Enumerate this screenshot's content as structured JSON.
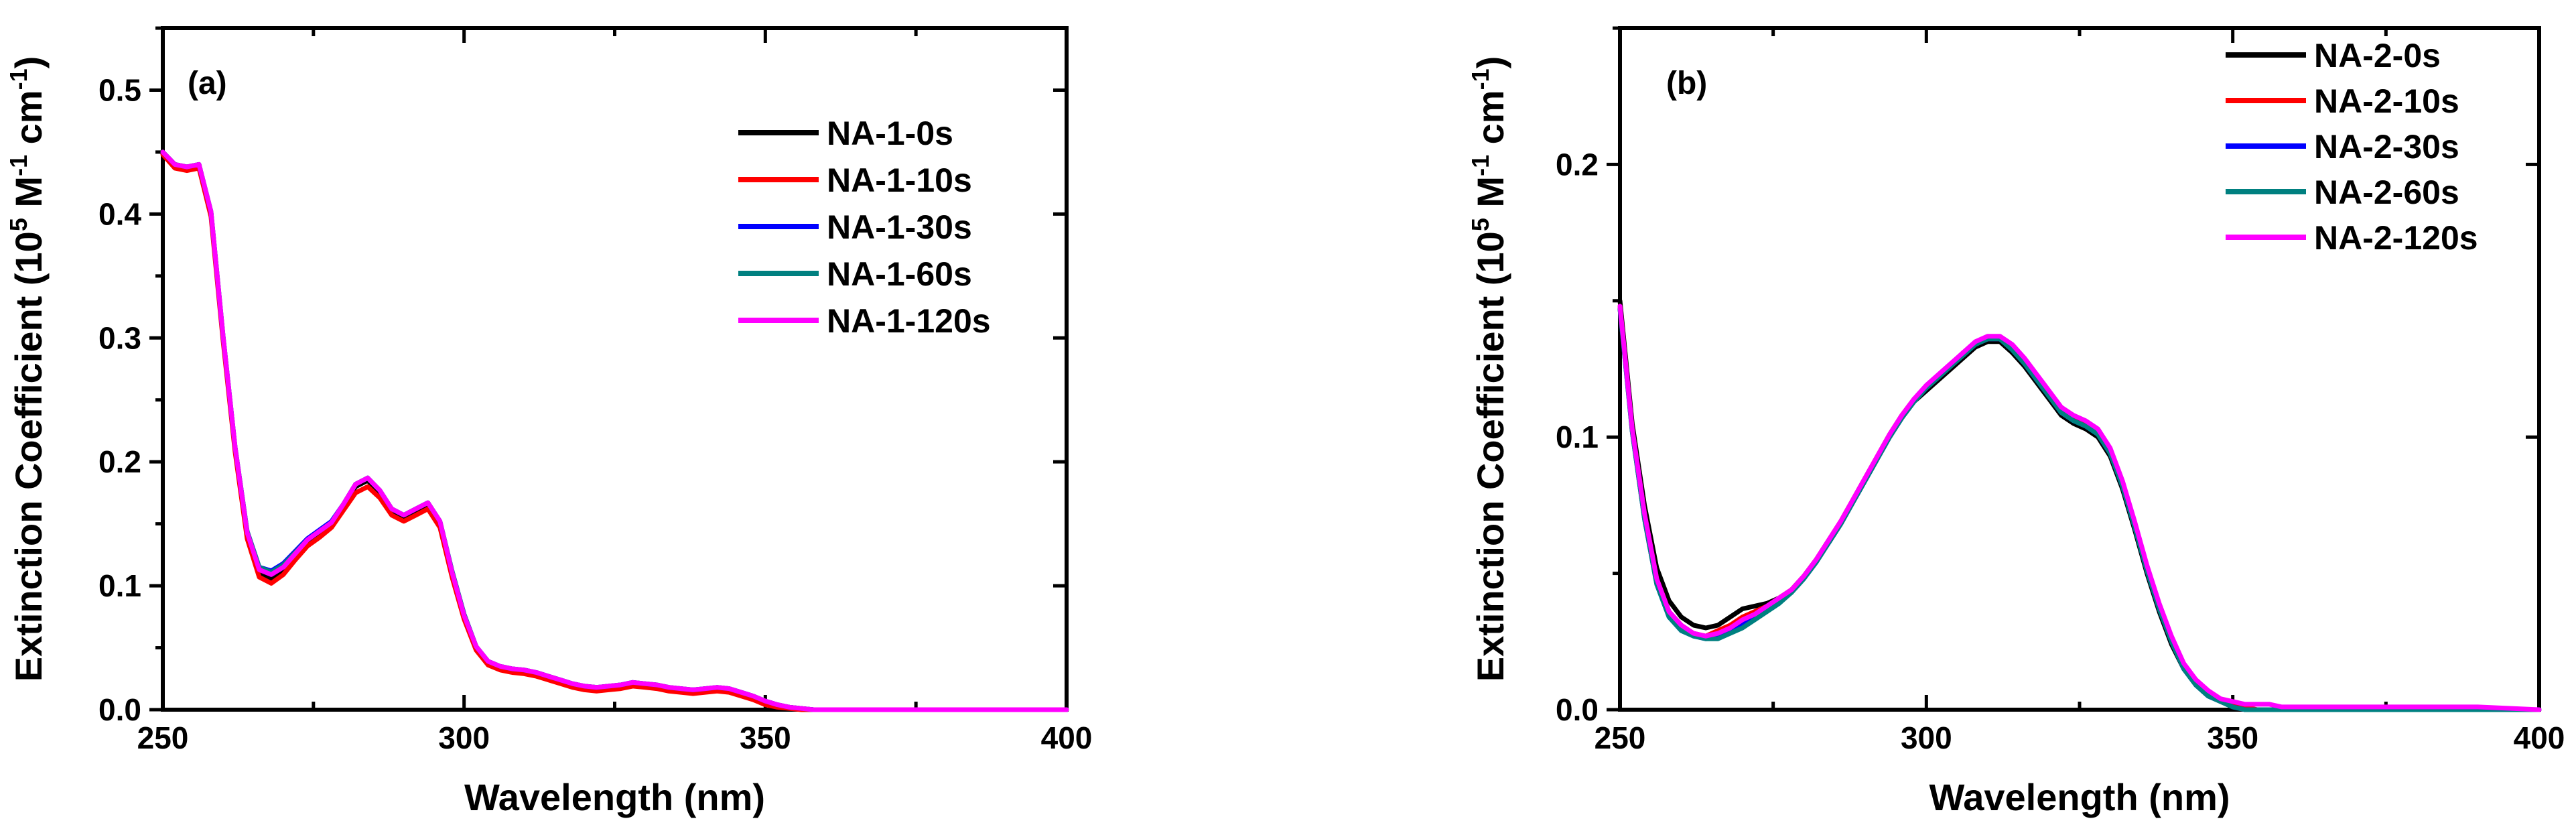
{
  "chart_data": [
    {
      "type": "line",
      "panel_label": "(a)",
      "xlabel": "Wavelength (nm)",
      "ylabel_parts": [
        "Extinction Coefficient (10",
        "5",
        " M",
        "-1",
        " cm",
        "-1",
        ")"
      ],
      "xlim": [
        250,
        400
      ],
      "ylim": [
        0,
        0.55
      ],
      "xticks": [
        250,
        300,
        350,
        400
      ],
      "xtick_labels": [
        "250",
        "300",
        "350",
        "400"
      ],
      "yticks": [
        0.0,
        0.1,
        0.2,
        0.3,
        0.4,
        0.5
      ],
      "ytick_labels": [
        "0.0",
        "0.1",
        "0.2",
        "0.3",
        "0.4",
        "0.5"
      ],
      "legend_position": "top-right",
      "x": [
        250,
        252,
        254,
        256,
        258,
        260,
        262,
        264,
        266,
        268,
        270,
        272,
        274,
        276,
        278,
        280,
        282,
        284,
        286,
        288,
        290,
        292,
        294,
        296,
        298,
        300,
        302,
        304,
        306,
        308,
        310,
        312,
        314,
        316,
        318,
        320,
        322,
        324,
        326,
        328,
        330,
        332,
        334,
        336,
        338,
        340,
        342,
        344,
        346,
        348,
        350,
        352,
        354,
        356,
        358,
        360,
        370,
        380,
        390,
        400
      ],
      "series": [
        {
          "name": "NA-1-0s",
          "color": "#000000",
          "values": [
            0.45,
            0.44,
            0.438,
            0.44,
            0.4,
            0.3,
            0.21,
            0.14,
            0.11,
            0.105,
            0.112,
            0.124,
            0.135,
            0.142,
            0.15,
            0.165,
            0.18,
            0.185,
            0.175,
            0.16,
            0.155,
            0.16,
            0.165,
            0.15,
            0.11,
            0.075,
            0.05,
            0.038,
            0.034,
            0.032,
            0.031,
            0.029,
            0.026,
            0.023,
            0.02,
            0.018,
            0.017,
            0.018,
            0.019,
            0.021,
            0.02,
            0.019,
            0.017,
            0.016,
            0.015,
            0.016,
            0.017,
            0.016,
            0.013,
            0.01,
            0.006,
            0.003,
            0.002,
            0.001,
            0.0,
            0.0,
            0.0,
            0.0,
            0.0,
            0.0
          ]
        },
        {
          "name": "NA-1-10s",
          "color": "#ff0000",
          "values": [
            0.448,
            0.437,
            0.435,
            0.437,
            0.398,
            0.298,
            0.208,
            0.138,
            0.107,
            0.102,
            0.109,
            0.121,
            0.132,
            0.139,
            0.147,
            0.161,
            0.175,
            0.18,
            0.171,
            0.157,
            0.152,
            0.157,
            0.162,
            0.147,
            0.107,
            0.073,
            0.048,
            0.036,
            0.032,
            0.03,
            0.029,
            0.027,
            0.024,
            0.021,
            0.018,
            0.016,
            0.015,
            0.016,
            0.017,
            0.019,
            0.018,
            0.017,
            0.015,
            0.014,
            0.013,
            0.014,
            0.015,
            0.014,
            0.011,
            0.008,
            0.004,
            0.002,
            0.001,
            0.0,
            0.0,
            0.0,
            0.0,
            0.0,
            0.0,
            0.0
          ]
        },
        {
          "name": "NA-1-30s",
          "color": "#0000ff",
          "values": [
            0.45,
            0.44,
            0.438,
            0.44,
            0.402,
            0.302,
            0.212,
            0.144,
            0.115,
            0.112,
            0.118,
            0.128,
            0.138,
            0.145,
            0.152,
            0.166,
            0.182,
            0.187,
            0.177,
            0.162,
            0.157,
            0.162,
            0.167,
            0.152,
            0.112,
            0.077,
            0.051,
            0.039,
            0.035,
            0.033,
            0.032,
            0.03,
            0.027,
            0.024,
            0.021,
            0.019,
            0.018,
            0.019,
            0.02,
            0.022,
            0.021,
            0.02,
            0.018,
            0.017,
            0.016,
            0.017,
            0.018,
            0.017,
            0.014,
            0.011,
            0.007,
            0.004,
            0.002,
            0.001,
            0.0,
            0.0,
            0.0,
            0.0,
            0.0,
            0.0
          ]
        },
        {
          "name": "NA-1-60s",
          "color": "#008080",
          "values": [
            0.45,
            0.44,
            0.438,
            0.44,
            0.402,
            0.302,
            0.212,
            0.144,
            0.115,
            0.111,
            0.117,
            0.127,
            0.137,
            0.144,
            0.151,
            0.166,
            0.182,
            0.187,
            0.177,
            0.162,
            0.157,
            0.162,
            0.167,
            0.152,
            0.112,
            0.077,
            0.051,
            0.039,
            0.035,
            0.033,
            0.032,
            0.03,
            0.027,
            0.024,
            0.021,
            0.019,
            0.018,
            0.019,
            0.02,
            0.022,
            0.021,
            0.02,
            0.018,
            0.017,
            0.016,
            0.017,
            0.018,
            0.017,
            0.014,
            0.011,
            0.007,
            0.004,
            0.002,
            0.001,
            0.0,
            0.0,
            0.0,
            0.0,
            0.0,
            0.0
          ]
        },
        {
          "name": "NA-1-120s",
          "color": "#ff00ff",
          "values": [
            0.45,
            0.44,
            0.438,
            0.44,
            0.402,
            0.302,
            0.212,
            0.143,
            0.113,
            0.109,
            0.115,
            0.126,
            0.137,
            0.144,
            0.151,
            0.166,
            0.182,
            0.187,
            0.177,
            0.162,
            0.157,
            0.162,
            0.167,
            0.152,
            0.111,
            0.076,
            0.051,
            0.039,
            0.035,
            0.033,
            0.032,
            0.03,
            0.027,
            0.024,
            0.021,
            0.019,
            0.018,
            0.019,
            0.02,
            0.022,
            0.021,
            0.02,
            0.018,
            0.017,
            0.016,
            0.017,
            0.018,
            0.017,
            0.014,
            0.011,
            0.007,
            0.004,
            0.002,
            0.001,
            0.0,
            0.0,
            0.0,
            0.0,
            0.0,
            0.0
          ]
        }
      ]
    },
    {
      "type": "line",
      "panel_label": "(b)",
      "xlabel": "Wavelength (nm)",
      "ylabel_parts": [
        "Extinction Coefficient (10",
        "5",
        " M",
        "-1",
        " cm",
        "-1",
        ")"
      ],
      "xlim": [
        250,
        400
      ],
      "ylim": [
        0,
        0.25
      ],
      "xticks": [
        250,
        300,
        350,
        400
      ],
      "xtick_labels": [
        "250",
        "300",
        "350",
        "400"
      ],
      "yticks": [
        0.0,
        0.1,
        0.2
      ],
      "ytick_labels": [
        "0.0",
        "0.1",
        "0.2"
      ],
      "legend_position": "top-right",
      "x": [
        250,
        252,
        254,
        256,
        258,
        260,
        262,
        264,
        266,
        268,
        270,
        272,
        274,
        276,
        278,
        280,
        282,
        284,
        286,
        288,
        290,
        292,
        294,
        296,
        298,
        300,
        302,
        304,
        306,
        308,
        310,
        312,
        314,
        316,
        318,
        320,
        322,
        324,
        326,
        328,
        330,
        332,
        334,
        336,
        338,
        340,
        342,
        344,
        346,
        348,
        350,
        352,
        354,
        356,
        358,
        360,
        370,
        380,
        390,
        400
      ],
      "series": [
        {
          "name": "NA-2-0s",
          "color": "#000000",
          "values": [
            0.15,
            0.105,
            0.075,
            0.052,
            0.04,
            0.034,
            0.031,
            0.03,
            0.031,
            0.034,
            0.037,
            0.038,
            0.039,
            0.041,
            0.044,
            0.049,
            0.055,
            0.061,
            0.068,
            0.076,
            0.084,
            0.092,
            0.1,
            0.107,
            0.113,
            0.117,
            0.121,
            0.125,
            0.129,
            0.133,
            0.135,
            0.135,
            0.131,
            0.126,
            0.12,
            0.114,
            0.108,
            0.105,
            0.103,
            0.1,
            0.093,
            0.081,
            0.066,
            0.05,
            0.036,
            0.024,
            0.015,
            0.009,
            0.005,
            0.003,
            0.001,
            0.0,
            0.0,
            0.0,
            0.0,
            0.0,
            0.0,
            0.0,
            0.0,
            0.0
          ]
        },
        {
          "name": "NA-2-10s",
          "color": "#ff0000",
          "values": [
            0.148,
            0.103,
            0.072,
            0.048,
            0.036,
            0.031,
            0.028,
            0.027,
            0.029,
            0.031,
            0.034,
            0.036,
            0.038,
            0.041,
            0.044,
            0.049,
            0.055,
            0.062,
            0.069,
            0.077,
            0.085,
            0.093,
            0.101,
            0.108,
            0.114,
            0.118,
            0.122,
            0.126,
            0.131,
            0.134,
            0.136,
            0.136,
            0.133,
            0.128,
            0.122,
            0.116,
            0.11,
            0.107,
            0.105,
            0.102,
            0.095,
            0.083,
            0.068,
            0.052,
            0.038,
            0.026,
            0.016,
            0.01,
            0.006,
            0.003,
            0.002,
            0.001,
            0.0,
            0.0,
            0.0,
            0.0,
            0.0,
            0.0,
            0.0,
            0.0
          ]
        },
        {
          "name": "NA-2-30s",
          "color": "#0000ff",
          "values": [
            0.147,
            0.102,
            0.07,
            0.046,
            0.034,
            0.029,
            0.027,
            0.026,
            0.027,
            0.029,
            0.031,
            0.034,
            0.037,
            0.04,
            0.043,
            0.048,
            0.054,
            0.061,
            0.068,
            0.076,
            0.084,
            0.092,
            0.1,
            0.107,
            0.113,
            0.118,
            0.122,
            0.126,
            0.13,
            0.134,
            0.136,
            0.136,
            0.132,
            0.127,
            0.121,
            0.115,
            0.109,
            0.106,
            0.104,
            0.101,
            0.094,
            0.082,
            0.067,
            0.051,
            0.037,
            0.025,
            0.015,
            0.009,
            0.005,
            0.003,
            0.001,
            0.0,
            0.0,
            0.0,
            0.0,
            0.0,
            0.0,
            0.0,
            0.0,
            0.0
          ]
        },
        {
          "name": "NA-2-60s",
          "color": "#008080",
          "values": [
            0.147,
            0.102,
            0.07,
            0.046,
            0.034,
            0.029,
            0.027,
            0.026,
            0.026,
            0.028,
            0.03,
            0.033,
            0.036,
            0.039,
            0.043,
            0.048,
            0.054,
            0.061,
            0.068,
            0.076,
            0.084,
            0.092,
            0.1,
            0.107,
            0.113,
            0.118,
            0.122,
            0.126,
            0.13,
            0.134,
            0.136,
            0.136,
            0.132,
            0.127,
            0.121,
            0.115,
            0.109,
            0.106,
            0.104,
            0.101,
            0.094,
            0.082,
            0.067,
            0.051,
            0.037,
            0.025,
            0.015,
            0.009,
            0.005,
            0.003,
            0.001,
            0.0,
            0.0,
            0.0,
            0.0,
            0.0,
            0.0,
            0.0,
            0.0,
            0.0
          ]
        },
        {
          "name": "NA-2-120s",
          "color": "#ff00ff",
          "values": [
            0.148,
            0.103,
            0.072,
            0.048,
            0.036,
            0.031,
            0.028,
            0.027,
            0.028,
            0.03,
            0.033,
            0.035,
            0.038,
            0.041,
            0.044,
            0.049,
            0.055,
            0.062,
            0.069,
            0.077,
            0.085,
            0.093,
            0.101,
            0.108,
            0.114,
            0.119,
            0.123,
            0.127,
            0.131,
            0.135,
            0.137,
            0.137,
            0.134,
            0.129,
            0.123,
            0.117,
            0.111,
            0.108,
            0.106,
            0.103,
            0.096,
            0.084,
            0.069,
            0.053,
            0.039,
            0.027,
            0.017,
            0.011,
            0.007,
            0.004,
            0.003,
            0.002,
            0.002,
            0.002,
            0.001,
            0.001,
            0.001,
            0.001,
            0.001,
            0.0
          ]
        }
      ]
    }
  ]
}
